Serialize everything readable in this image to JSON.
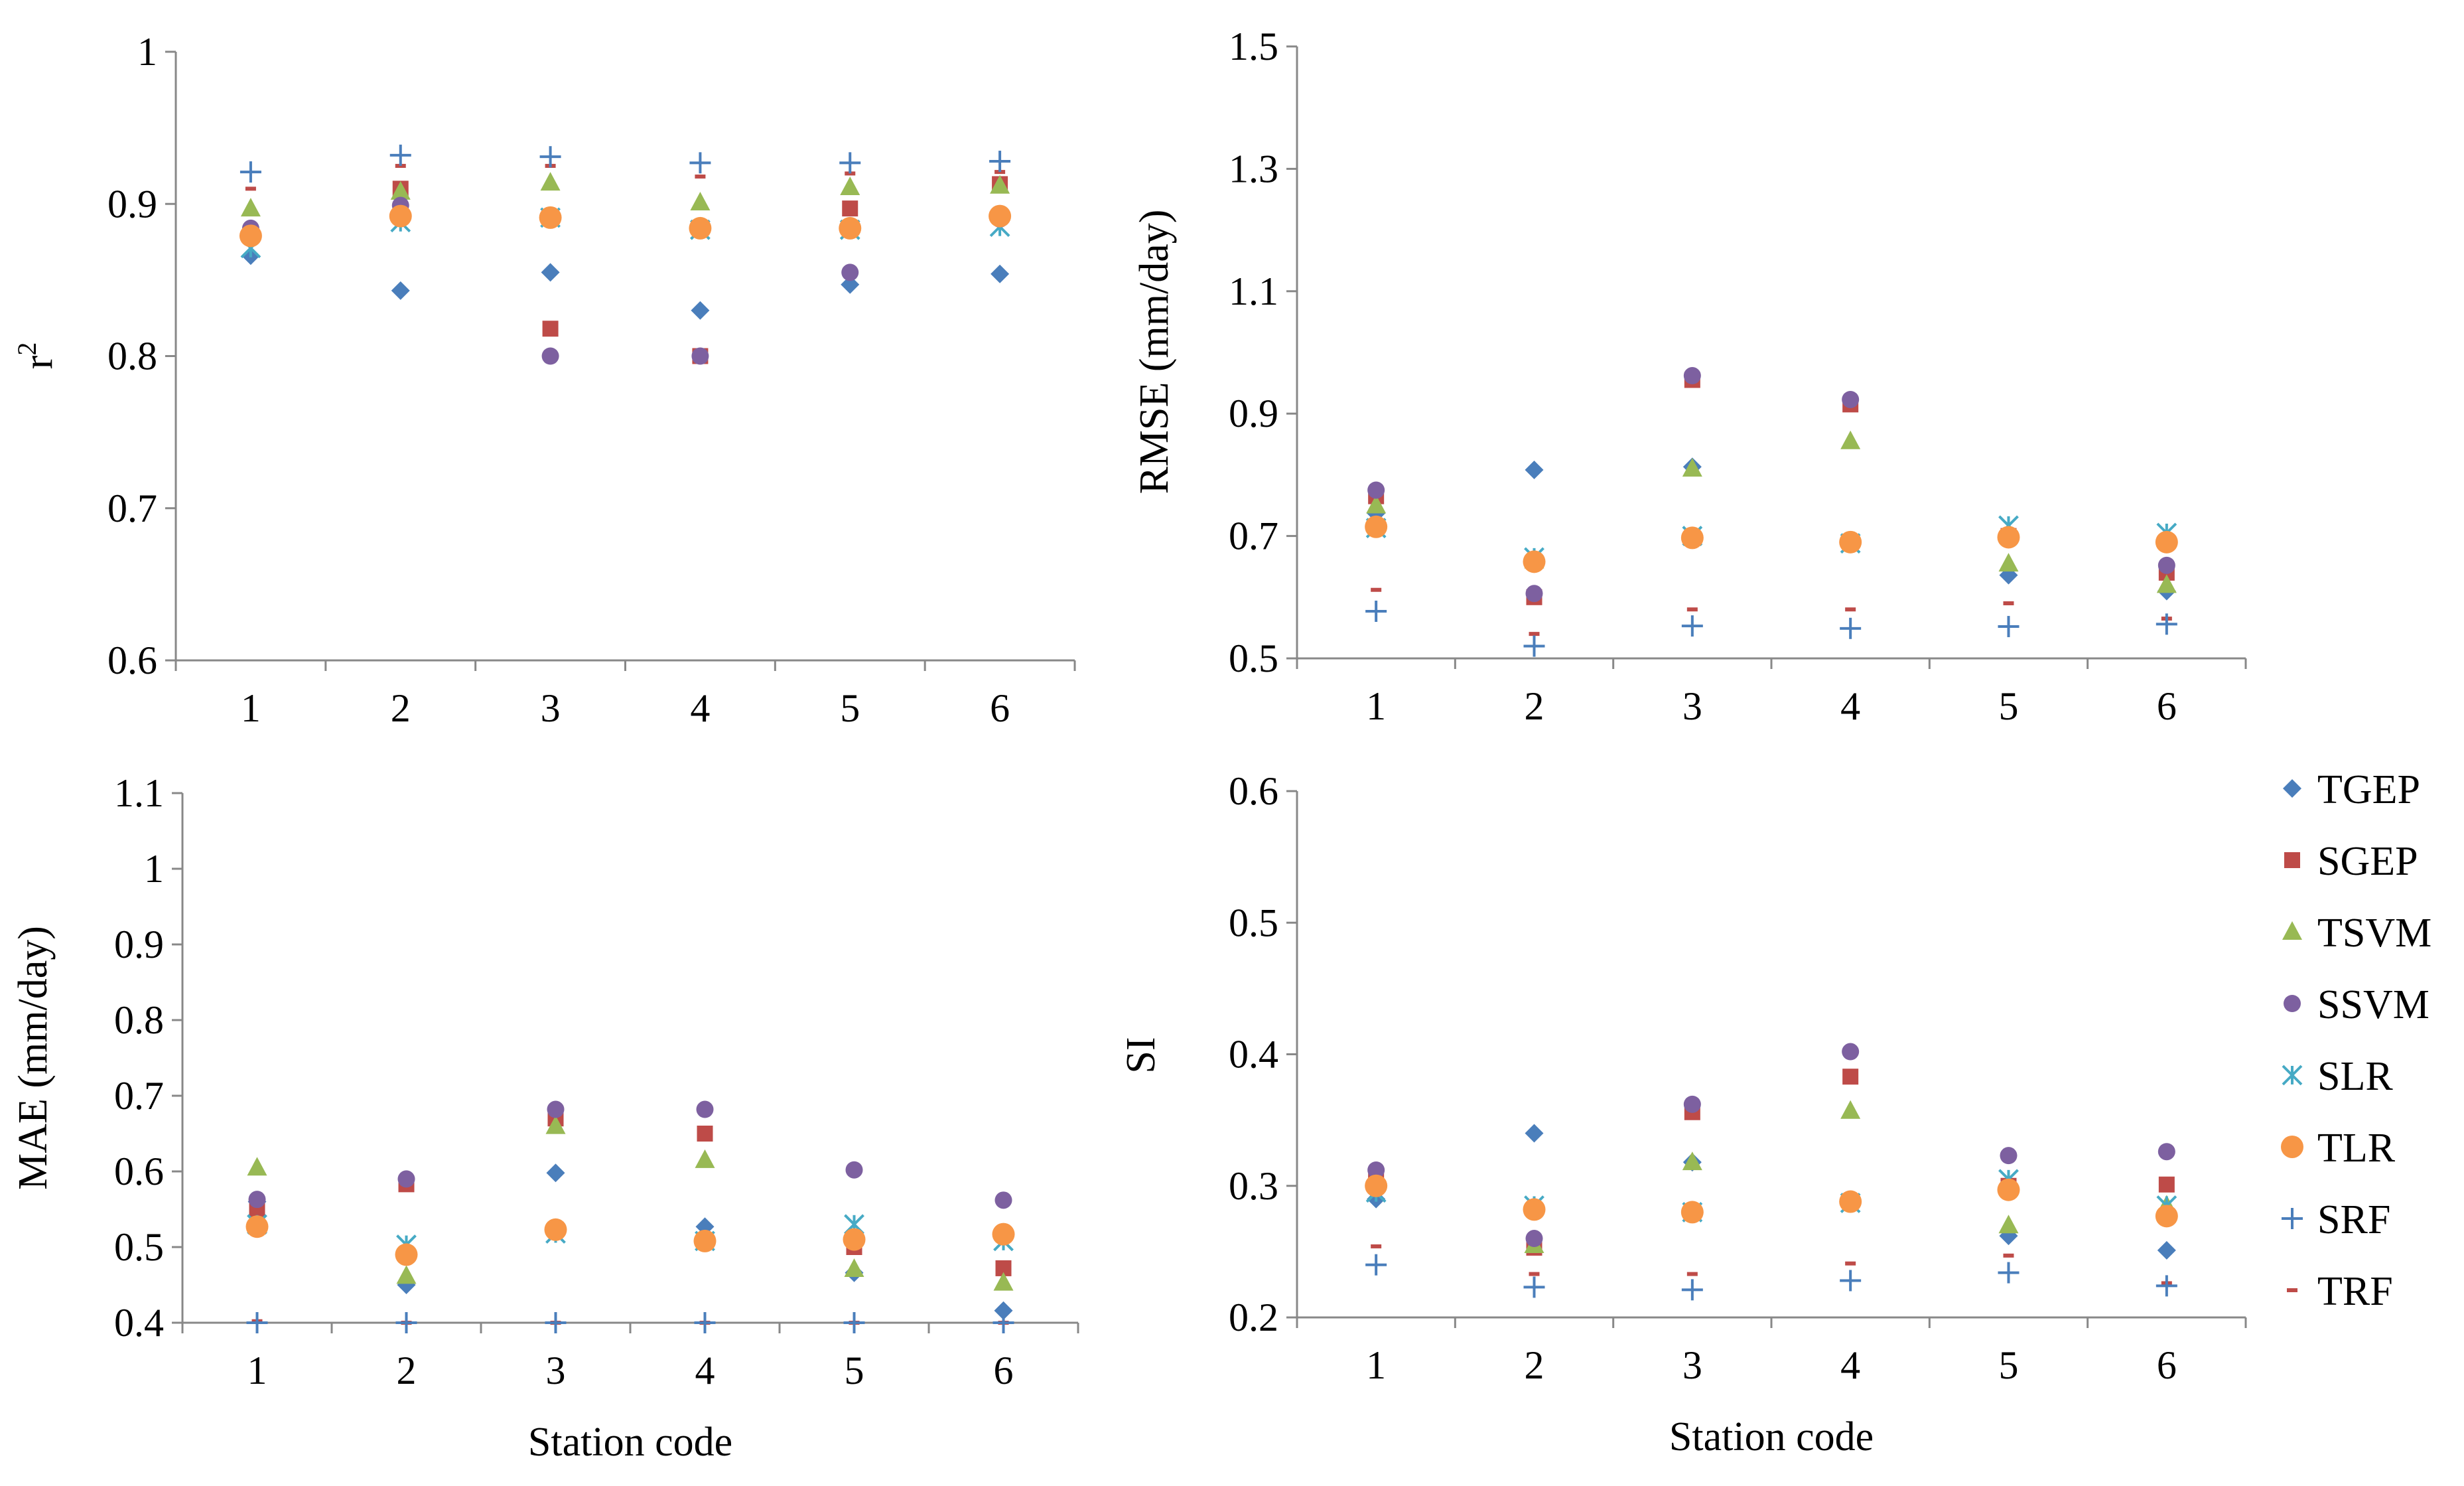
{
  "series_colors": {
    "TGEP": "#4a7ebb",
    "SGEP": "#be4b48",
    "TSVM": "#98b954",
    "SSVM": "#7d60a0",
    "SLR": "#46aac5",
    "TLR": "#f79646",
    "SRF": "#4a7ebb",
    "TRF": "#be4b48"
  },
  "legend": {
    "title": "",
    "entries": [
      "TGEP",
      "SGEP",
      "TSVM",
      "SSVM",
      "SLR",
      "TLR",
      "SRF",
      "TRF"
    ],
    "placement": "right"
  },
  "chart_data": [
    {
      "type": "scatter",
      "title": "",
      "xlabel": "",
      "ylabel": "r",
      "ylabel_sup": "2",
      "x": [
        1,
        2,
        3,
        4,
        5,
        6
      ],
      "xticks": [
        "1",
        "2",
        "3",
        "4",
        "5",
        "6"
      ],
      "ylim": [
        0.6,
        1.0
      ],
      "yticks": [
        "0.6",
        "0.7",
        "0.8",
        "0.9",
        "1"
      ],
      "series": [
        {
          "name": "TGEP",
          "values": [
            0.866,
            0.843,
            0.855,
            0.83,
            0.847,
            0.854
          ]
        },
        {
          "name": "SGEP",
          "values": [
            0.88,
            0.91,
            0.818,
            0.8,
            0.897,
            0.913
          ]
        },
        {
          "name": "TSVM",
          "values": [
            0.897,
            0.908,
            0.914,
            0.901,
            0.911,
            0.912
          ]
        },
        {
          "name": "SSVM",
          "values": [
            0.884,
            0.899,
            0.8,
            0.8,
            0.855,
            0.89
          ]
        },
        {
          "name": "SLR",
          "values": [
            0.871,
            0.888,
            0.891,
            0.883,
            0.883,
            0.885
          ]
        },
        {
          "name": "TLR",
          "values": [
            0.879,
            0.892,
            0.891,
            0.884,
            0.884,
            0.892
          ]
        },
        {
          "name": "SRF",
          "values": [
            0.921,
            0.932,
            0.931,
            0.927,
            0.927,
            0.928
          ]
        },
        {
          "name": "TRF",
          "values": [
            0.91,
            0.925,
            0.925,
            0.918,
            0.92,
            0.921
          ]
        }
      ]
    },
    {
      "type": "scatter",
      "title": "",
      "xlabel": "",
      "ylabel": "RMSE  (mm/day)",
      "x": [
        1,
        2,
        3,
        4,
        5,
        6
      ],
      "xticks": [
        "1",
        "2",
        "3",
        "4",
        "5",
        "6"
      ],
      "ylim": [
        0.5,
        1.5
      ],
      "yticks": [
        "0.5",
        "0.7",
        "0.9",
        "1.1",
        "1.3",
        "1.5"
      ],
      "series": [
        {
          "name": "TGEP",
          "values": [
            0.737,
            0.808,
            0.813,
            0.69,
            0.636,
            0.61
          ]
        },
        {
          "name": "SGEP",
          "values": [
            0.765,
            0.6,
            0.955,
            0.915,
            0.7,
            0.64
          ]
        },
        {
          "name": "TSVM",
          "values": [
            0.75,
            0.66,
            0.81,
            0.855,
            0.655,
            0.62
          ]
        },
        {
          "name": "SSVM",
          "values": [
            0.775,
            0.606,
            0.962,
            0.923,
            0.7,
            0.652
          ]
        },
        {
          "name": "SLR",
          "values": [
            0.713,
            0.665,
            0.7,
            0.688,
            0.717,
            0.705
          ]
        },
        {
          "name": "TLR",
          "values": [
            0.715,
            0.658,
            0.697,
            0.69,
            0.698,
            0.69
          ]
        },
        {
          "name": "SRF",
          "values": [
            0.577,
            0.52,
            0.553,
            0.549,
            0.552,
            0.556
          ]
        },
        {
          "name": "TRF",
          "values": [
            0.612,
            0.54,
            0.58,
            0.58,
            0.59,
            0.565
          ]
        }
      ]
    },
    {
      "type": "scatter",
      "title": "",
      "xlabel": "Station code",
      "ylabel": "MAE  (mm/day)",
      "x": [
        1,
        2,
        3,
        4,
        5,
        6
      ],
      "xticks": [
        "1",
        "2",
        "3",
        "4",
        "5",
        "6"
      ],
      "ylim": [
        0.4,
        1.1
      ],
      "yticks": [
        "0.4",
        "0.5",
        "0.6",
        "0.7",
        "0.8",
        "0.9",
        "1",
        "1.1"
      ],
      "series": [
        {
          "name": "TGEP",
          "values": [
            0.56,
            0.45,
            0.598,
            0.527,
            0.466,
            0.416
          ]
        },
        {
          "name": "SGEP",
          "values": [
            0.549,
            0.583,
            0.67,
            0.65,
            0.5,
            0.472
          ]
        },
        {
          "name": "TSVM",
          "values": [
            0.605,
            0.462,
            0.66,
            0.615,
            0.471,
            0.453
          ]
        },
        {
          "name": "SSVM",
          "values": [
            0.563,
            0.59,
            0.682,
            0.682,
            0.602,
            0.562
          ]
        },
        {
          "name": "SLR",
          "values": [
            0.53,
            0.503,
            0.518,
            0.508,
            0.53,
            0.508
          ]
        },
        {
          "name": "TLR",
          "values": [
            0.527,
            0.49,
            0.523,
            0.508,
            0.51,
            0.517
          ]
        },
        {
          "name": "SRF",
          "values": [
            0.4,
            0.4,
            0.4,
            0.4,
            0.4,
            0.4
          ]
        },
        {
          "name": "TRF",
          "values": [
            0.402,
            0.4,
            0.4,
            0.4,
            0.4,
            0.4
          ]
        }
      ]
    },
    {
      "type": "scatter",
      "title": "",
      "xlabel": "Station code",
      "ylabel": "SI",
      "x": [
        1,
        2,
        3,
        4,
        5,
        6
      ],
      "xticks": [
        "1",
        "2",
        "3",
        "4",
        "5",
        "6"
      ],
      "ylim": [
        0.2,
        0.6
      ],
      "yticks": [
        "0.2",
        "0.3",
        "0.4",
        "0.5",
        "0.6"
      ],
      "series": [
        {
          "name": "TGEP",
          "values": [
            0.29,
            0.34,
            0.318,
            0.288,
            0.262,
            0.251
          ]
        },
        {
          "name": "SGEP",
          "values": [
            0.305,
            0.253,
            0.356,
            0.383,
            0.3,
            0.301
          ]
        },
        {
          "name": "TSVM",
          "values": [
            0.303,
            0.255,
            0.318,
            0.357,
            0.27,
            0.285
          ]
        },
        {
          "name": "SSVM",
          "values": [
            0.312,
            0.26,
            0.362,
            0.402,
            0.323,
            0.326
          ]
        },
        {
          "name": "SLR",
          "values": [
            0.295,
            0.285,
            0.28,
            0.287,
            0.305,
            0.285
          ]
        },
        {
          "name": "TLR",
          "values": [
            0.3,
            0.282,
            0.28,
            0.288,
            0.297,
            0.277
          ]
        },
        {
          "name": "SRF",
          "values": [
            0.24,
            0.223,
            0.221,
            0.228,
            0.234,
            0.224
          ]
        },
        {
          "name": "TRF",
          "values": [
            0.254,
            0.233,
            0.233,
            0.241,
            0.247,
            0.226
          ]
        }
      ]
    }
  ]
}
